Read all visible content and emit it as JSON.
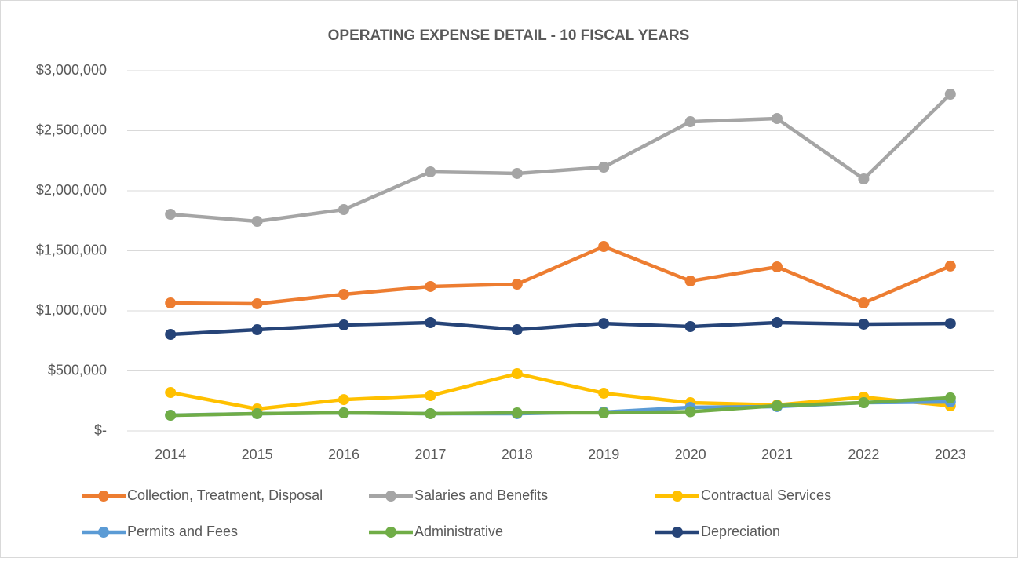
{
  "chart_data": {
    "type": "line",
    "title": "OPERATING EXPENSE DETAIL - 10 FISCAL YEARS",
    "categories": [
      "2014",
      "2015",
      "2016",
      "2017",
      "2018",
      "2019",
      "2020",
      "2021",
      "2022",
      "2023"
    ],
    "series": [
      {
        "name": "Collection, Treatment, Disposal",
        "color": "#ed7d31",
        "values": [
          1065000,
          1059000,
          1137000,
          1203000,
          1222000,
          1536000,
          1248000,
          1366000,
          1065000,
          1373000
        ]
      },
      {
        "name": "Salaries and Benefits",
        "color": "#a5a5a5",
        "values": [
          1804000,
          1745000,
          1843000,
          2157000,
          2144000,
          2196000,
          2575000,
          2601000,
          2098000,
          2804000
        ]
      },
      {
        "name": "Contractual Services",
        "color": "#ffc000",
        "values": [
          320000,
          183000,
          261000,
          294000,
          477000,
          314000,
          235000,
          216000,
          281000,
          209000
        ]
      },
      {
        "name": "Permits and Fees",
        "color": "#5b9bd5",
        "values": [
          131000,
          144000,
          150000,
          144000,
          144000,
          157000,
          196000,
          203000,
          235000,
          242000
        ]
      },
      {
        "name": "Administrative",
        "color": "#70ad47",
        "values": [
          130000,
          144000,
          150000,
          144000,
          150000,
          150000,
          160000,
          210000,
          235000,
          275000
        ]
      },
      {
        "name": "Depreciation",
        "color": "#264478",
        "values": [
          804000,
          843000,
          882000,
          902000,
          843000,
          895000,
          869000,
          902000,
          889000,
          895000
        ]
      }
    ],
    "ylim": [
      0,
      3000000
    ],
    "yticks": [
      {
        "value": 0,
        "label": "$-"
      },
      {
        "value": 500000,
        "label": "$500,000"
      },
      {
        "value": 1000000,
        "label": "$1,000,000"
      },
      {
        "value": 1500000,
        "label": "$1,500,000"
      },
      {
        "value": 2000000,
        "label": "$2,000,000"
      },
      {
        "value": 2500000,
        "label": "$2,500,000"
      },
      {
        "value": 3000000,
        "label": "$3,000,000"
      }
    ],
    "grid": true
  }
}
